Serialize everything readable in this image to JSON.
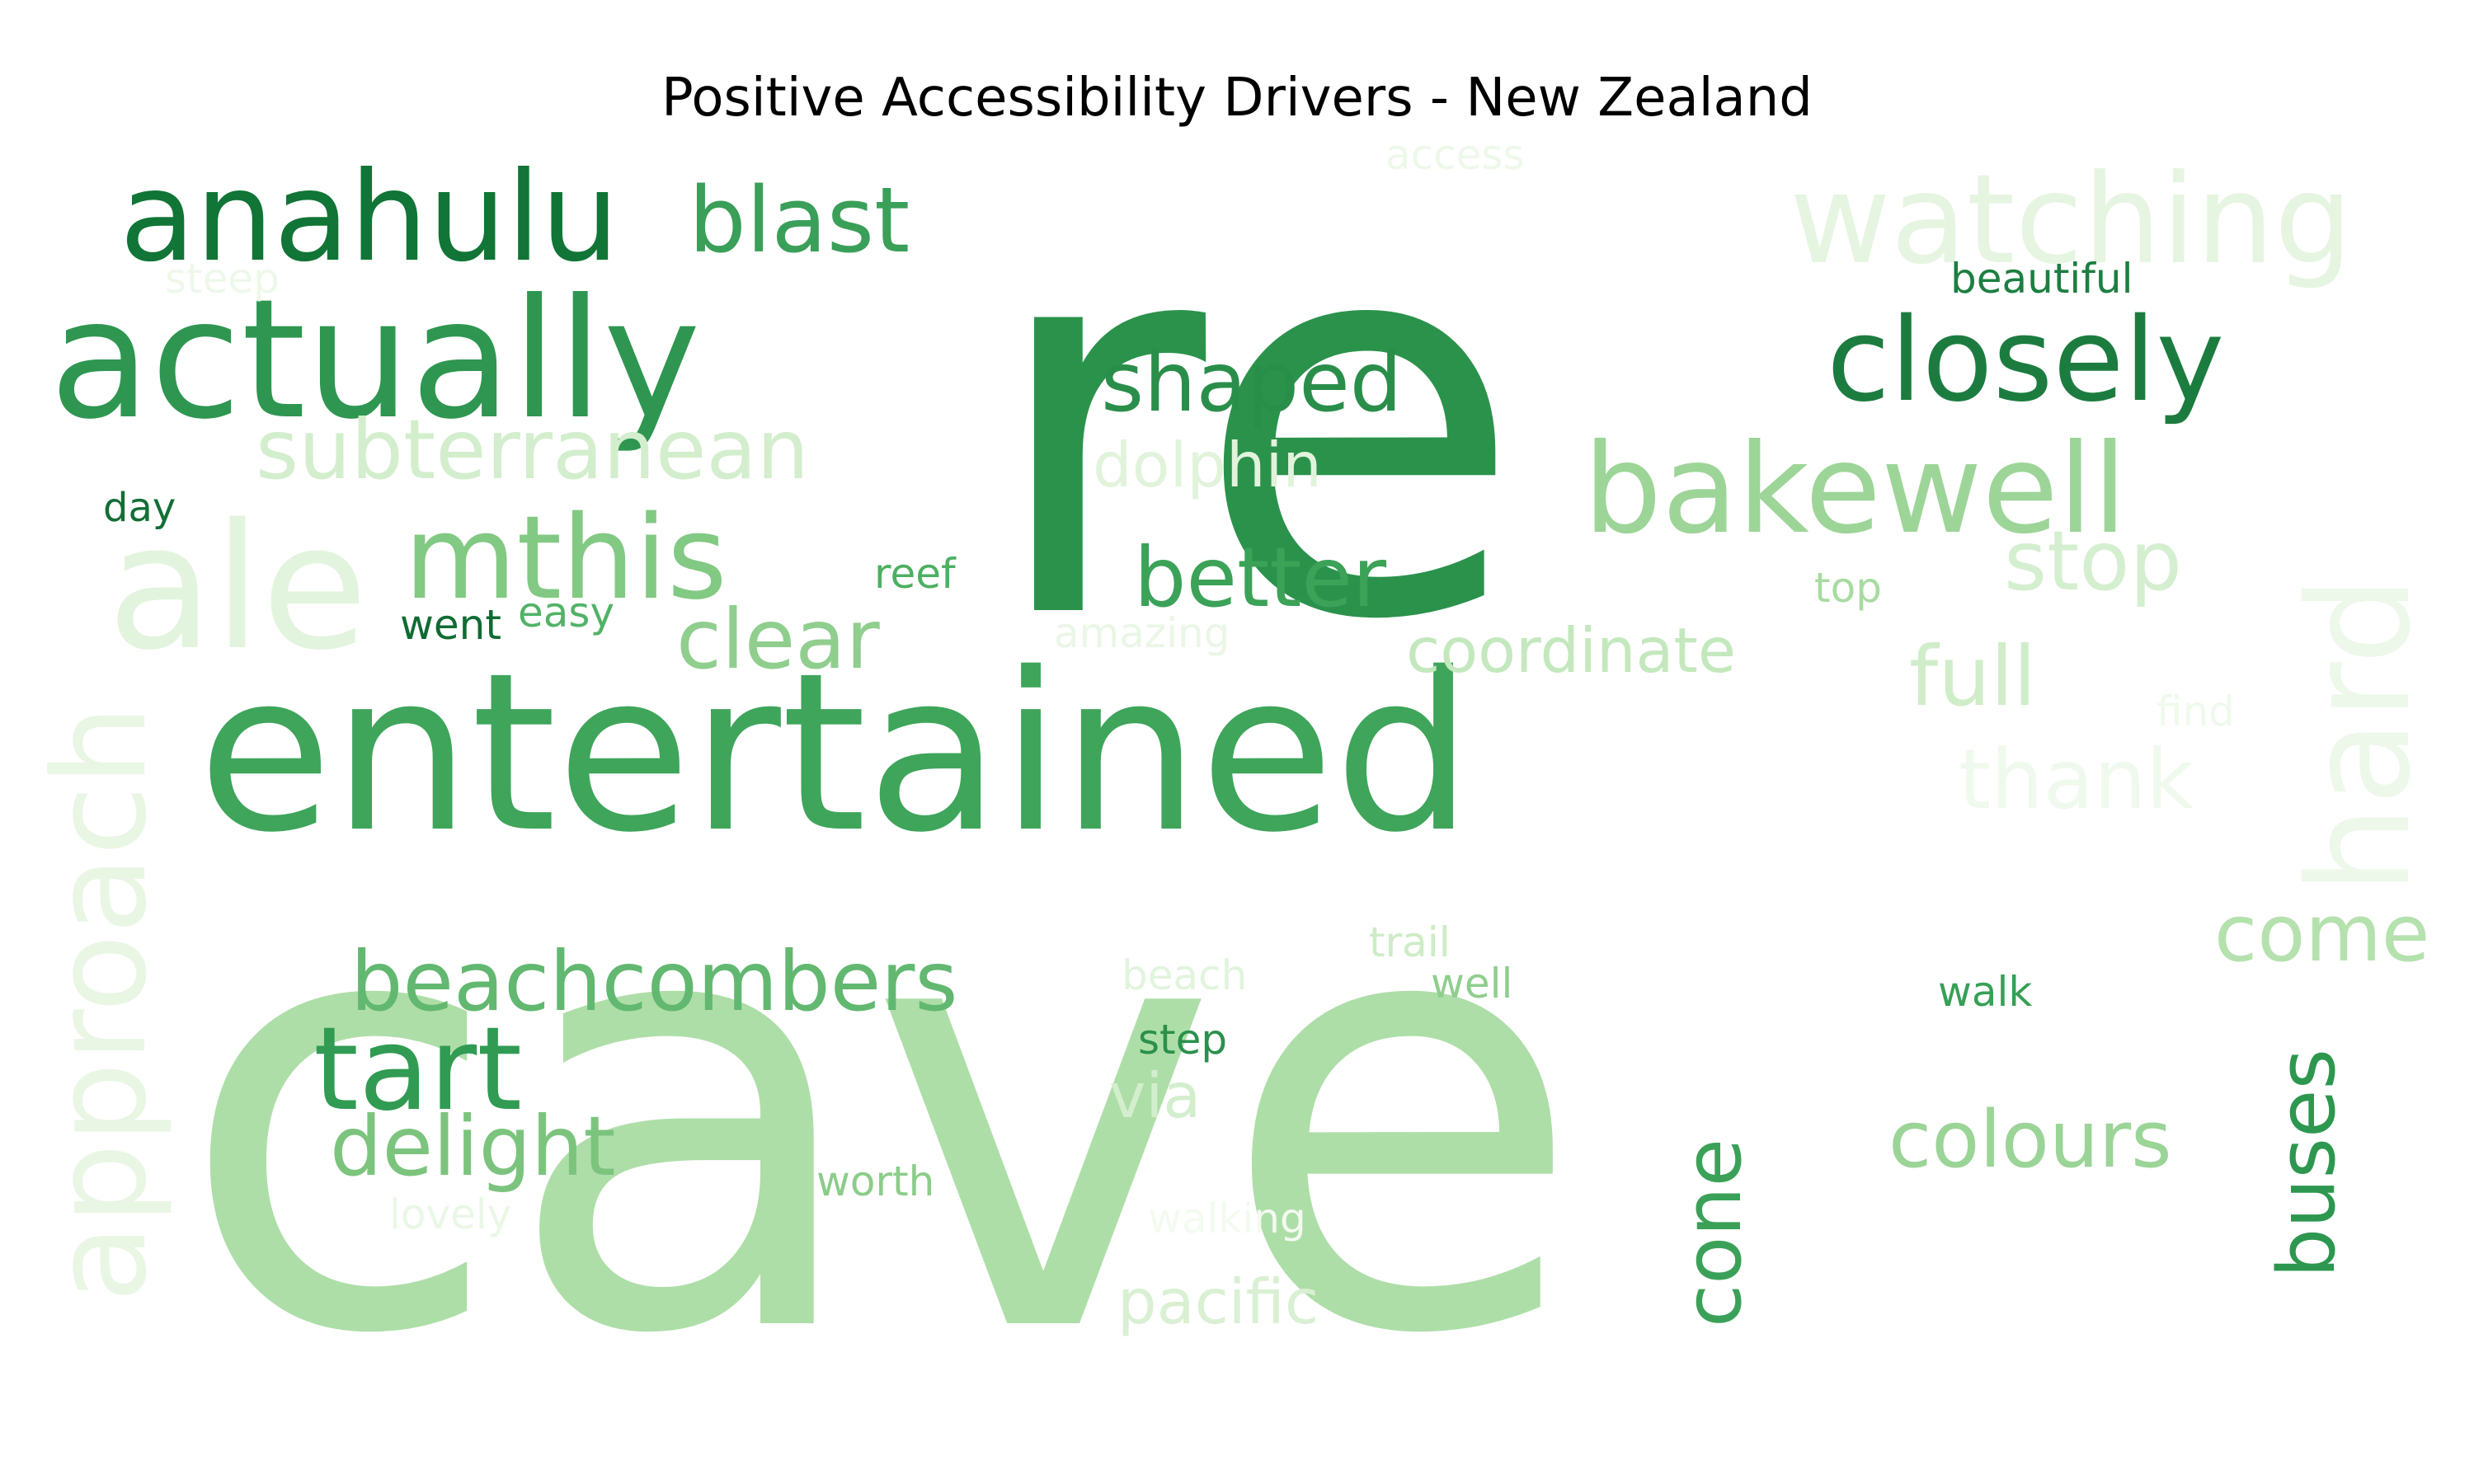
{
  "title": "Positive Accessibility Drivers - New Zealand",
  "words": [
    {
      "text": "cave",
      "color": "#aedea8"
    },
    {
      "text": "re",
      "color": "#2b924c"
    },
    {
      "text": "entertained",
      "color": "#3ea55b"
    },
    {
      "text": "actually",
      "color": "#2e9650"
    },
    {
      "text": "anahulu",
      "color": "#107536"
    },
    {
      "text": "ale",
      "color": "#e3f4de"
    },
    {
      "text": "watching",
      "color": "#e6f5e1"
    },
    {
      "text": "approach",
      "color": "#e9f6e4"
    },
    {
      "text": "hard",
      "color": "#edf8ea"
    },
    {
      "text": "bakewell",
      "color": "#9dd598"
    },
    {
      "text": "closely",
      "color": "#1c7c40"
    },
    {
      "text": "blast",
      "color": "#3a9f58"
    },
    {
      "text": "mthis",
      "color": "#82c983"
    },
    {
      "text": "subterranean",
      "color": "#d3eecd"
    },
    {
      "text": "shaped",
      "color": "#2a8e4b"
    },
    {
      "text": "better",
      "color": "#3ba258"
    },
    {
      "text": "tart",
      "color": "#319b53"
    },
    {
      "text": "beachcombers",
      "color": "#62b870"
    },
    {
      "text": "delight",
      "color": "#7cc47e"
    },
    {
      "text": "clear",
      "color": "#90ce8e"
    },
    {
      "text": "stop",
      "color": "#d4efcf"
    },
    {
      "text": "full",
      "color": "#d0edc9"
    },
    {
      "text": "thank",
      "color": "#f0f9ed"
    },
    {
      "text": "come",
      "color": "#b5e1ae"
    },
    {
      "text": "colours",
      "color": "#9bd497"
    },
    {
      "text": "buses",
      "color": "#2d974f"
    },
    {
      "text": "cone",
      "color": "#3ba158"
    },
    {
      "text": "coordinate",
      "color": "#c4e8bd"
    },
    {
      "text": "pacific",
      "color": "#d9f0d3"
    },
    {
      "text": "dolphin",
      "color": "#e2f3dc"
    },
    {
      "text": "via",
      "color": "#d3eecd"
    },
    {
      "text": "beautiful",
      "color": "#1d7e41"
    },
    {
      "text": "access",
      "color": "#edf8e9"
    },
    {
      "text": "steep",
      "color": "#eef8ea"
    },
    {
      "text": "day",
      "color": "#136e35"
    },
    {
      "text": "reef",
      "color": "#4daf62"
    },
    {
      "text": "went",
      "color": "#0f6b32"
    },
    {
      "text": "easy",
      "color": "#52b267"
    },
    {
      "text": "amazing",
      "color": "#eaf6e6"
    },
    {
      "text": "top",
      "color": "#a8dba2"
    },
    {
      "text": "find",
      "color": "#eff9ec"
    },
    {
      "text": "trail",
      "color": "#cdecc6"
    },
    {
      "text": "well",
      "color": "#8fce8d"
    },
    {
      "text": "beach",
      "color": "#e2f4dd"
    },
    {
      "text": "step",
      "color": "#2b904c"
    },
    {
      "text": "walk",
      "color": "#37a055"
    },
    {
      "text": "worth",
      "color": "#8ccc8a"
    },
    {
      "text": "lovely",
      "color": "#eaf7e6"
    },
    {
      "text": "walking",
      "color": "#f3faf0"
    }
  ]
}
